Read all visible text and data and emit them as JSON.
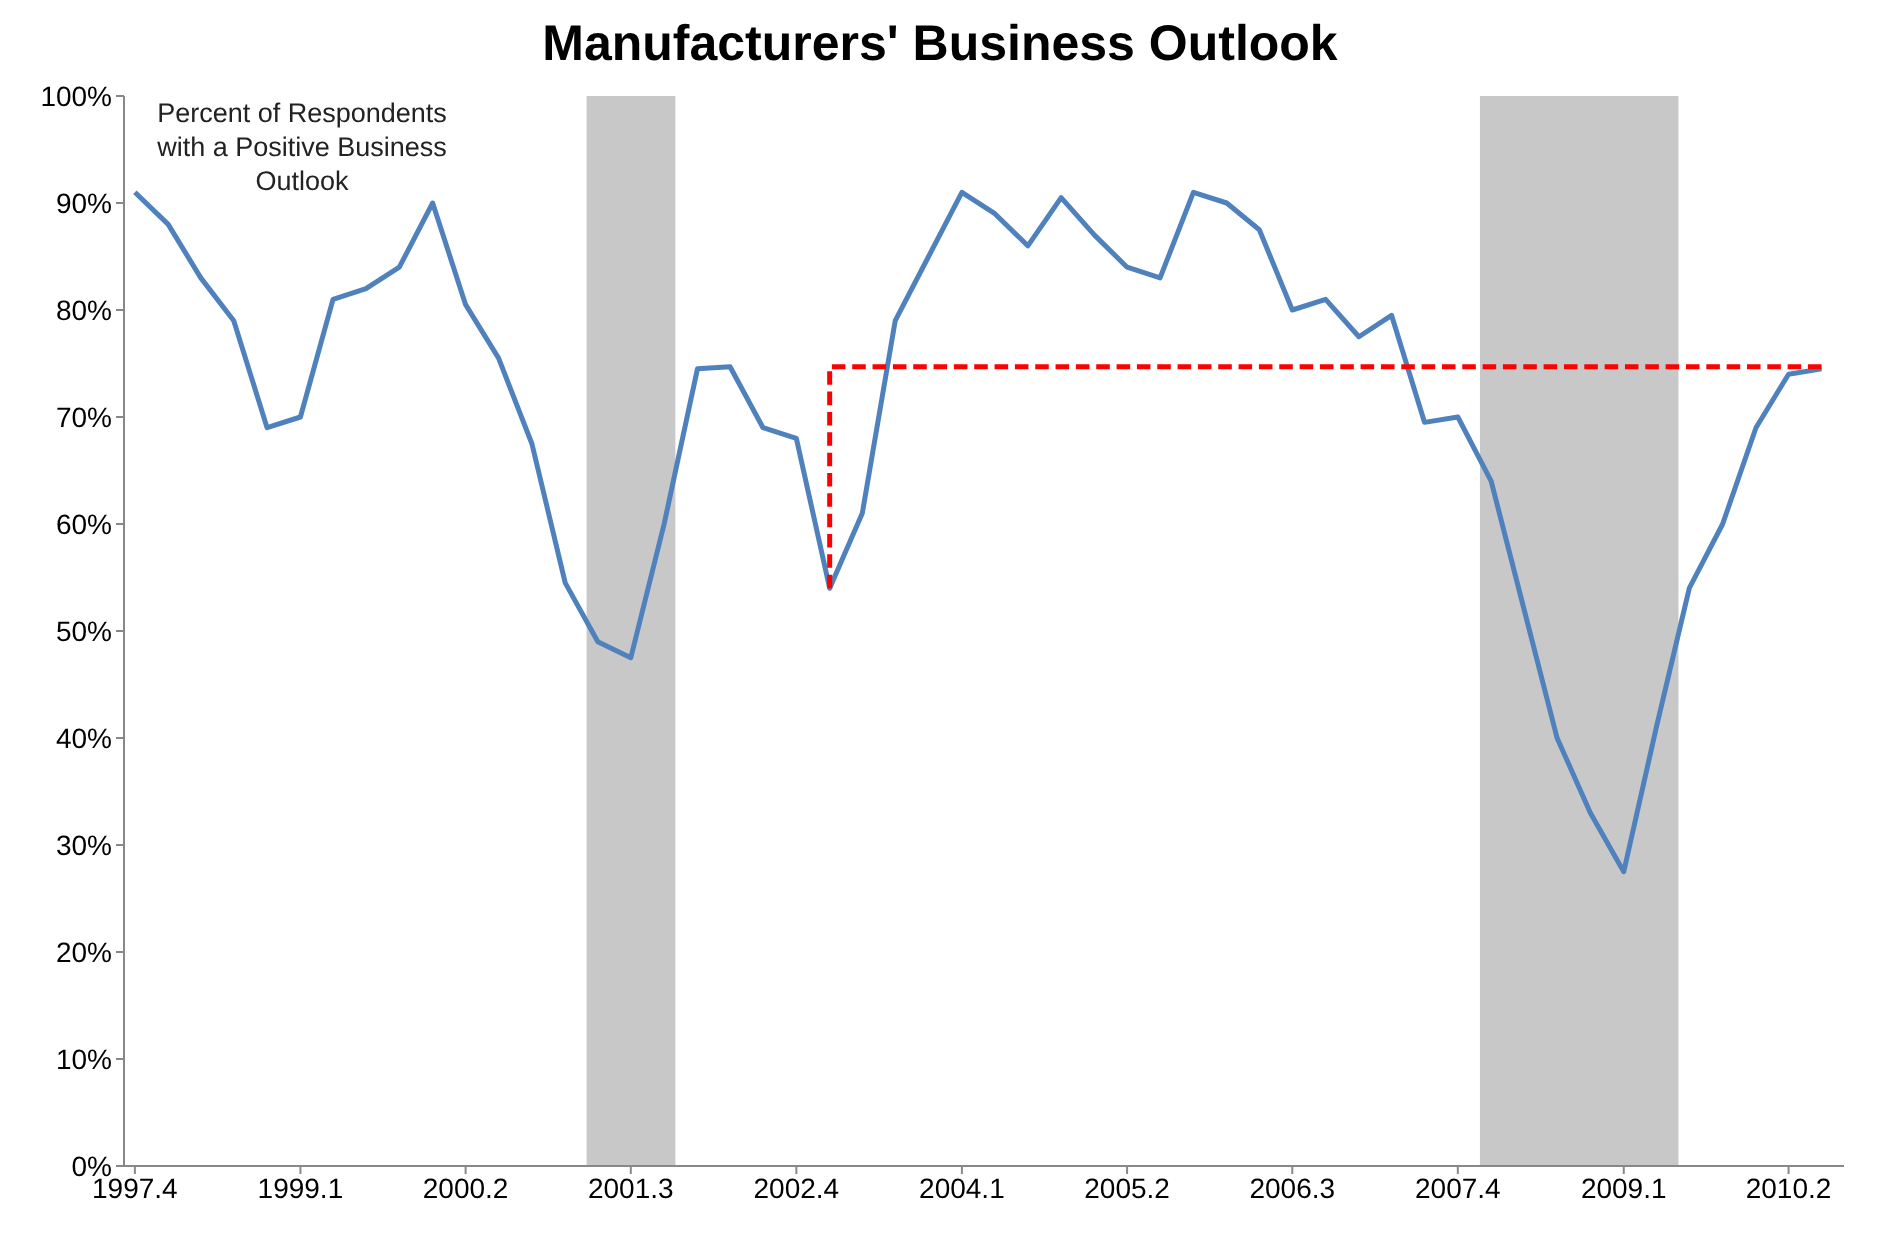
{
  "chart_data": {
    "type": "line",
    "title": "Manufacturers' Business Outlook",
    "annotations": [
      "Percent of Respondents with a Positive Business Outlook"
    ],
    "x": [
      "1997-10",
      "1998-01",
      "1998-04",
      "1998-07",
      "1998-10",
      "1999-01",
      "1999-04",
      "1999-07",
      "1999-10",
      "2000-01",
      "2000-04",
      "2000-07",
      "2000-10",
      "2001-01",
      "2001-04",
      "2001-07",
      "2001-10",
      "2002-01",
      "2002-04",
      "2002-07",
      "2002-10",
      "2003-01",
      "2003-04",
      "2003-07",
      "2003-10",
      "2004-01",
      "2004-04",
      "2004-07",
      "2004-10",
      "2005-01",
      "2005-04",
      "2005-07",
      "2005-10",
      "2006-01",
      "2006-04",
      "2006-07",
      "2006-10",
      "2007-01",
      "2007-04",
      "2007-07",
      "2007-10",
      "2008-01",
      "2008-04",
      "2008-07",
      "2008-10",
      "2009-01",
      "2009-04",
      "2009-07",
      "2009-10",
      "2010-01",
      "2010-04",
      "2010-07"
    ],
    "series": [
      {
        "color": "#4f81bd",
        "line_style": "solid",
        "values": [
          91,
          88,
          83,
          79,
          69,
          70,
          81,
          82,
          84,
          90,
          80.5,
          75.5,
          67.5,
          54.5,
          49,
          47.5,
          60,
          74.5,
          74.7,
          69,
          68,
          54,
          61,
          79,
          85,
          91,
          89,
          86,
          90.5,
          87,
          84,
          83,
          91,
          90,
          87.5,
          80,
          81,
          77.5,
          79.5,
          69.5,
          70,
          64,
          52,
          40,
          33,
          27.5,
          41,
          54,
          60,
          69,
          74,
          74.5
        ]
      },
      {
        "color": "#ff0000",
        "line_style": "dashed",
        "x": [
          "2003-01",
          "2003-01",
          "2010-07"
        ],
        "values": [
          54,
          74.7,
          74.7
        ]
      }
    ],
    "xlim": [
      "1997-09",
      "2010-09"
    ],
    "xticks": [
      {
        "value": "1997-10",
        "label": "1997.4"
      },
      {
        "value": "1999-01",
        "label": "1999.1"
      },
      {
        "value": "2000-04",
        "label": "2000.2"
      },
      {
        "value": "2001-07",
        "label": "2001.3"
      },
      {
        "value": "2002-10",
        "label": "2002.4"
      },
      {
        "value": "2004-01",
        "label": "2004.1"
      },
      {
        "value": "2005-04",
        "label": "2005.2"
      },
      {
        "value": "2006-07",
        "label": "2006.3"
      },
      {
        "value": "2007-10",
        "label": "2007.4"
      },
      {
        "value": "2009-01",
        "label": "2009.1"
      },
      {
        "value": "2010-04",
        "label": "2010.2"
      }
    ],
    "ylim": [
      0,
      100
    ],
    "yticks": [
      {
        "value": 0,
        "label": "0%"
      },
      {
        "value": 10,
        "label": "10%"
      },
      {
        "value": 20,
        "label": "20%"
      },
      {
        "value": 30,
        "label": "30%"
      },
      {
        "value": 40,
        "label": "40%"
      },
      {
        "value": 50,
        "label": "50%"
      },
      {
        "value": 60,
        "label": "60%"
      },
      {
        "value": 70,
        "label": "70%"
      },
      {
        "value": 80,
        "label": "80%"
      },
      {
        "value": 90,
        "label": "90%"
      },
      {
        "value": 100,
        "label": "100%"
      }
    ],
    "bands": [
      {
        "axis": "x",
        "from": "2001-03",
        "to": "2001-11",
        "color": "#c8c8c8"
      },
      {
        "axis": "x",
        "from": "2007-12",
        "to": "2009-06",
        "color": "#c8c8c8"
      }
    ],
    "grid": false,
    "legend": false,
    "marker": "none"
  }
}
